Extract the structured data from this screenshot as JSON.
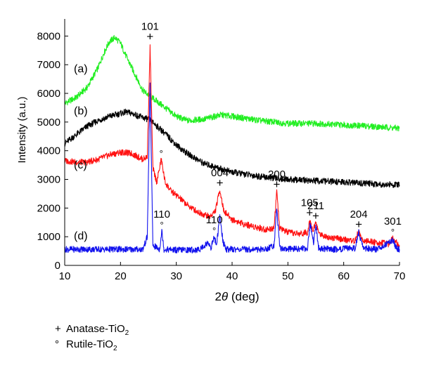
{
  "chart_data": {
    "type": "line",
    "xlabel_prefix": "2",
    "xlabel_symbol": "θ",
    "xlabel_suffix": " (deg)",
    "ylabel": "Intensity (a.u.)",
    "xlim": [
      10,
      70
    ],
    "ylim": [
      0,
      8400
    ],
    "xticks": [
      10,
      20,
      30,
      40,
      50,
      60,
      70
    ],
    "yticks": [
      0,
      1000,
      2000,
      3000,
      4000,
      5000,
      6000,
      7000,
      8000
    ],
    "grid": false,
    "series": [
      {
        "name": "(a)",
        "color": "#22ee22",
        "x": [
          10,
          12,
          14,
          16,
          17,
          18,
          19,
          20,
          21,
          22,
          24,
          25,
          26,
          28,
          30,
          32,
          35,
          38,
          40,
          45,
          50,
          55,
          60,
          65,
          70
        ],
        "y": [
          5650,
          5850,
          6200,
          6900,
          7400,
          7800,
          7950,
          7750,
          7300,
          6900,
          6100,
          5950,
          5800,
          5500,
          5200,
          5050,
          5100,
          5250,
          5200,
          5050,
          4950,
          4950,
          4900,
          4850,
          4780
        ]
      },
      {
        "name": "(b)",
        "color": "#000000",
        "x": [
          10,
          12,
          14,
          16,
          18,
          20,
          21,
          22,
          24,
          25,
          26,
          28,
          30,
          32,
          35,
          40,
          45,
          50,
          55,
          60,
          65,
          70
        ],
        "y": [
          4250,
          4550,
          4850,
          5050,
          5200,
          5300,
          5350,
          5300,
          5150,
          5100,
          4950,
          4600,
          4200,
          3900,
          3550,
          3250,
          3100,
          3000,
          2950,
          2900,
          2850,
          2800
        ]
      },
      {
        "name": "(c)",
        "color": "#ff1111",
        "x": [
          10,
          12,
          14,
          16,
          18,
          20,
          22,
          24,
          24.8,
          25.3,
          25.8,
          26.5,
          27.3,
          28,
          29,
          30,
          32,
          34,
          36,
          37,
          37.8,
          38.5,
          40,
          42,
          44,
          46,
          47.5,
          48,
          48.5,
          50,
          52,
          53.5,
          53.9,
          54.5,
          55,
          55.6,
          57,
          60,
          62,
          62.7,
          63.4,
          66,
          68,
          68.8,
          69.5,
          70
        ],
        "y": [
          3650,
          3600,
          3600,
          3700,
          3850,
          3950,
          3900,
          3700,
          3800,
          7600,
          3400,
          2900,
          3700,
          2900,
          2600,
          2450,
          2100,
          1850,
          1700,
          1900,
          2650,
          1900,
          1600,
          1450,
          1350,
          1250,
          1300,
          2600,
          1300,
          1150,
          1100,
          1150,
          1600,
          1200,
          1500,
          1100,
          1000,
          900,
          850,
          1200,
          850,
          800,
          750,
          950,
          780,
          700
        ]
      },
      {
        "name": "(d)",
        "color": "#1111ee",
        "x": [
          10,
          15,
          20,
          24,
          24.8,
          25.3,
          25.8,
          27,
          27.4,
          27.8,
          30,
          34,
          35.8,
          36.2,
          36.8,
          37.2,
          37.8,
          38.4,
          39,
          42,
          46,
          47.5,
          48,
          48.6,
          50,
          53.5,
          54,
          54.6,
          55,
          55.5,
          58,
          62,
          62.7,
          63.5,
          66,
          68.8,
          69.4,
          70
        ],
        "y": [
          560,
          560,
          560,
          560,
          1000,
          6300,
          700,
          560,
          1200,
          560,
          540,
          540,
          800,
          600,
          1000,
          700,
          1700,
          800,
          560,
          560,
          560,
          700,
          1950,
          600,
          560,
          600,
          1450,
          800,
          1400,
          600,
          560,
          600,
          1150,
          600,
          560,
          900,
          600,
          560
        ]
      }
    ],
    "curve_labels": [
      "(a)",
      "(b)",
      "(c)",
      "(d)"
    ],
    "annotations": {
      "peaks": [
        {
          "symbol": "+",
          "label": "101",
          "x": 25.3,
          "y": 7750
        },
        {
          "symbol": "°",
          "label": "",
          "x": 27.3,
          "y": 3700
        },
        {
          "symbol": "+",
          "label": "004",
          "x": 37.8,
          "y": 2650
        },
        {
          "symbol": "+",
          "label": "200",
          "x": 48.0,
          "y": 2600
        },
        {
          "symbol": "+",
          "label": "105",
          "x": 53.9,
          "y": 1600
        },
        {
          "symbol": "+",
          "label": "211",
          "x": 55.0,
          "y": 1500
        },
        {
          "symbol": "+",
          "label": "204",
          "x": 62.7,
          "y": 1200
        },
        {
          "symbol": "°",
          "label": "301",
          "x": 68.8,
          "y": 950
        },
        {
          "symbol": "°",
          "label": "110",
          "x": 27.4,
          "y": 1200
        },
        {
          "symbol": "°",
          "label": "110",
          "x": 36.8,
          "y": 1000
        }
      ]
    },
    "legend": {
      "placement": "below-plot",
      "items": [
        {
          "symbol": "+",
          "name": "Anatase-TiO",
          "sub": "2"
        },
        {
          "symbol": "°",
          "name": "Rutile-TiO",
          "sub": "2"
        }
      ]
    }
  }
}
